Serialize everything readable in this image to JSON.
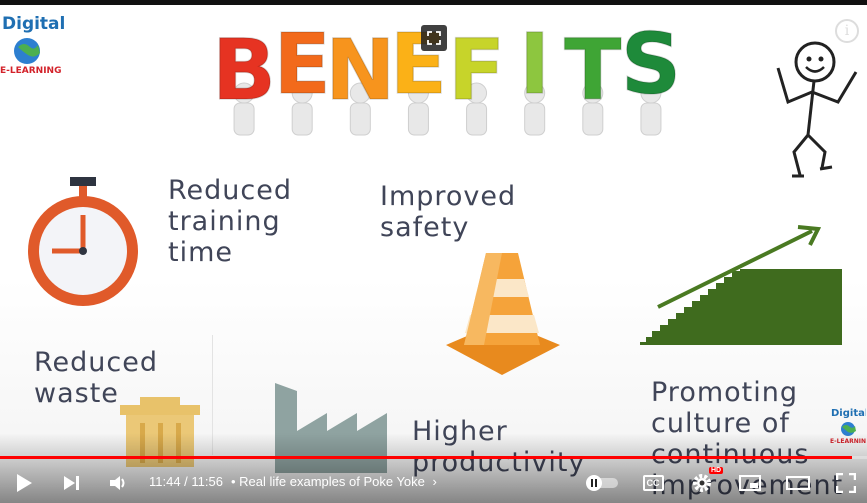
{
  "slide": {
    "heading": "BENEFITS",
    "heading_colors": [
      "#e63322",
      "#f26a1b",
      "#f7941d",
      "#fbb117",
      "#c7d42a",
      "#8dc63f",
      "#3fa535",
      "#1e8a3a"
    ],
    "logo": {
      "line1": "Digital",
      "line2": "E-LEARNING"
    },
    "items": {
      "reduced_training": "Reduced\ntraining\ntime",
      "improved_safety": "Improved\nsafety",
      "reduced_waste": "Reduced\nwaste",
      "higher_productivity": "Higher\nproductivity",
      "promoting_culture": "Promoting\nculture of\ncontinuous\nimprovement"
    },
    "colors": {
      "text": "#404558",
      "clock": "#e05a2a",
      "cone": "#f0a030",
      "stairs": "#3f6b1e"
    }
  },
  "player": {
    "time_display": "11:44 / 11:56",
    "chapter_title": "• Real life examples of Poke Yoke",
    "hd_badge": "HD",
    "cc_label": "CC",
    "progress_fraction": 0.983,
    "icons": [
      "play-icon",
      "next-icon",
      "volume-icon",
      "autoplay-toggle",
      "captions-icon",
      "settings-icon",
      "miniplayer-icon",
      "theater-icon",
      "fullscreen-icon",
      "info-icon",
      "exit-fullscreen-overlay-icon"
    ]
  }
}
